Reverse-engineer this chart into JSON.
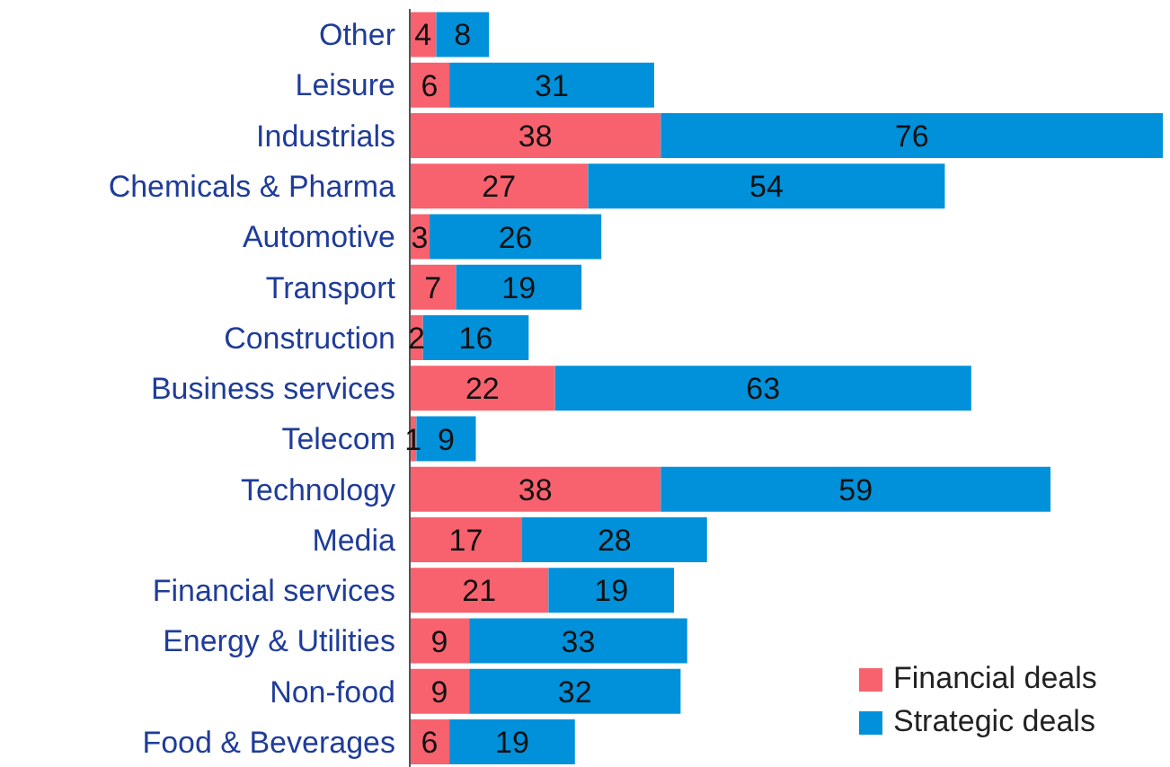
{
  "chart_data": {
    "type": "bar",
    "orientation": "horizontal",
    "stacked": true,
    "data_labels": true,
    "legend": "bottom right",
    "categories": [
      "Other",
      "Leisure",
      "Industrials",
      "Chemicals & Pharma",
      "Automotive",
      "Transport",
      "Construction",
      "Business services",
      "Telecom",
      "Technology",
      "Media",
      "Financial services",
      "Energy & Utilities",
      "Non-food",
      "Food & Beverages"
    ],
    "series": [
      {
        "name": "Financial deals",
        "color": "#f7626e",
        "values": [
          4,
          6,
          38,
          27,
          3,
          7,
          2,
          22,
          1,
          38,
          17,
          21,
          9,
          9,
          6
        ]
      },
      {
        "name": "Strategic deals",
        "color": "#0091da",
        "values": [
          8,
          31,
          76,
          54,
          26,
          19,
          16,
          63,
          9,
          59,
          28,
          19,
          33,
          32,
          19
        ]
      }
    ]
  }
}
